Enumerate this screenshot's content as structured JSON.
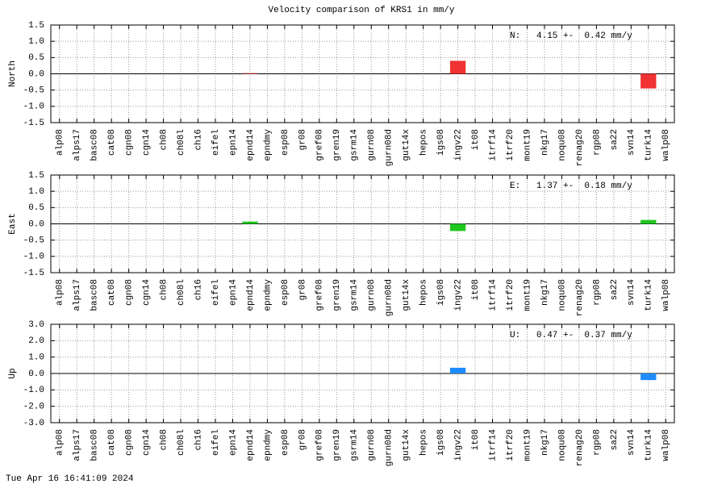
{
  "title": "Velocity comparison of KRS1 in mm/y",
  "timestamp": "Tue Apr 16 16:41:09 2024",
  "chart_data": [
    {
      "type": "bar",
      "ylabel": "North",
      "annotation": "N:   4.15 +-  0.42 mm/y",
      "color": "#f03232",
      "grid": true,
      "categories": [
        "alp08",
        "alps17",
        "basc08",
        "cat08",
        "cgn08",
        "cgn14",
        "ch08",
        "ch08l",
        "ch16",
        "eifel",
        "epn14",
        "epnd14",
        "epndmy",
        "esp08",
        "gr08",
        "gref08",
        "gren19",
        "gsrm14",
        "gurn08",
        "gurn08d",
        "gut14x",
        "hepos",
        "igs08",
        "ingv22",
        "it08",
        "itrf14",
        "itrf20",
        "mont19",
        "nkg17",
        "noqu08",
        "renag20",
        "rgp08",
        "sa22",
        "svn14",
        "turk14",
        "walp08"
      ],
      "values": [
        null,
        null,
        null,
        null,
        null,
        null,
        null,
        null,
        null,
        null,
        null,
        0.02,
        null,
        null,
        null,
        null,
        null,
        null,
        null,
        null,
        null,
        null,
        null,
        0.4,
        null,
        null,
        null,
        null,
        null,
        null,
        null,
        null,
        null,
        null,
        -0.45,
        null
      ],
      "ylim": [
        -1.5,
        1.5
      ],
      "yticks": [
        -1.5,
        {
          "value": -1,
          "label": "-1.0"
        },
        -0.5,
        {
          "value": 0,
          "label": "0.0"
        },
        0.5,
        {
          "value": 1,
          "label": "1.0"
        },
        1.5
      ]
    },
    {
      "type": "bar",
      "ylabel": "East",
      "annotation": "E:   1.37 +-  0.18 mm/y",
      "color": "#1ec81e",
      "grid": true,
      "categories": [
        "alp08",
        "alps17",
        "basc08",
        "cat08",
        "cgn08",
        "cgn14",
        "ch08",
        "ch08l",
        "ch16",
        "eifel",
        "epn14",
        "epnd14",
        "epndmy",
        "esp08",
        "gr08",
        "gref08",
        "gren19",
        "gsrm14",
        "gurn08",
        "gurn08d",
        "gut14x",
        "hepos",
        "igs08",
        "ingv22",
        "it08",
        "itrf14",
        "itrf20",
        "mont19",
        "nkg17",
        "noqu08",
        "renag20",
        "rgp08",
        "sa22",
        "svn14",
        "turk14",
        "walp08"
      ],
      "values": [
        null,
        null,
        null,
        null,
        null,
        null,
        null,
        null,
        null,
        null,
        null,
        0.07,
        null,
        null,
        null,
        null,
        null,
        null,
        null,
        null,
        null,
        null,
        null,
        -0.22,
        null,
        null,
        null,
        null,
        null,
        null,
        null,
        null,
        null,
        null,
        0.12,
        null
      ],
      "ylim": [
        -1.5,
        1.5
      ],
      "yticks": [
        -1.5,
        {
          "value": -1,
          "label": "-1.0"
        },
        -0.5,
        {
          "value": 0,
          "label": "0.0"
        },
        0.5,
        {
          "value": 1,
          "label": "1.0"
        },
        1.5
      ]
    },
    {
      "type": "bar",
      "ylabel": "Up",
      "annotation": "U:   0.47 +-  0.37 mm/y",
      "color": "#1e8cff",
      "grid": true,
      "categories": [
        "alp08",
        "alps17",
        "basc08",
        "cat08",
        "cgn08",
        "cgn14",
        "ch08",
        "ch08l",
        "ch16",
        "eifel",
        "epn14",
        "epnd14",
        "epndmy",
        "esp08",
        "gr08",
        "gref08",
        "gren19",
        "gsrm14",
        "gurn08",
        "gurn08d",
        "gut14x",
        "hepos",
        "igs08",
        "ingv22",
        "it08",
        "itrf14",
        "itrf20",
        "mont19",
        "nkg17",
        "noqu08",
        "renag20",
        "rgp08",
        "sa22",
        "svn14",
        "turk14",
        "walp08"
      ],
      "values": [
        null,
        null,
        null,
        null,
        null,
        null,
        null,
        null,
        null,
        null,
        null,
        null,
        null,
        null,
        null,
        null,
        null,
        null,
        null,
        null,
        null,
        null,
        null,
        0.35,
        null,
        null,
        null,
        null,
        null,
        null,
        null,
        null,
        null,
        null,
        -0.4,
        null
      ],
      "ylim": [
        -3,
        3
      ],
      "yticks": [
        {
          "value": -3,
          "label": "-3.0"
        },
        {
          "value": -2,
          "label": "-2.0"
        },
        {
          "value": -1,
          "label": "-1.0"
        },
        {
          "value": 0,
          "label": "0.0"
        },
        {
          "value": 1,
          "label": "1.0"
        },
        {
          "value": 2,
          "label": "2.0"
        },
        {
          "value": 3,
          "label": "3.0"
        }
      ]
    }
  ]
}
